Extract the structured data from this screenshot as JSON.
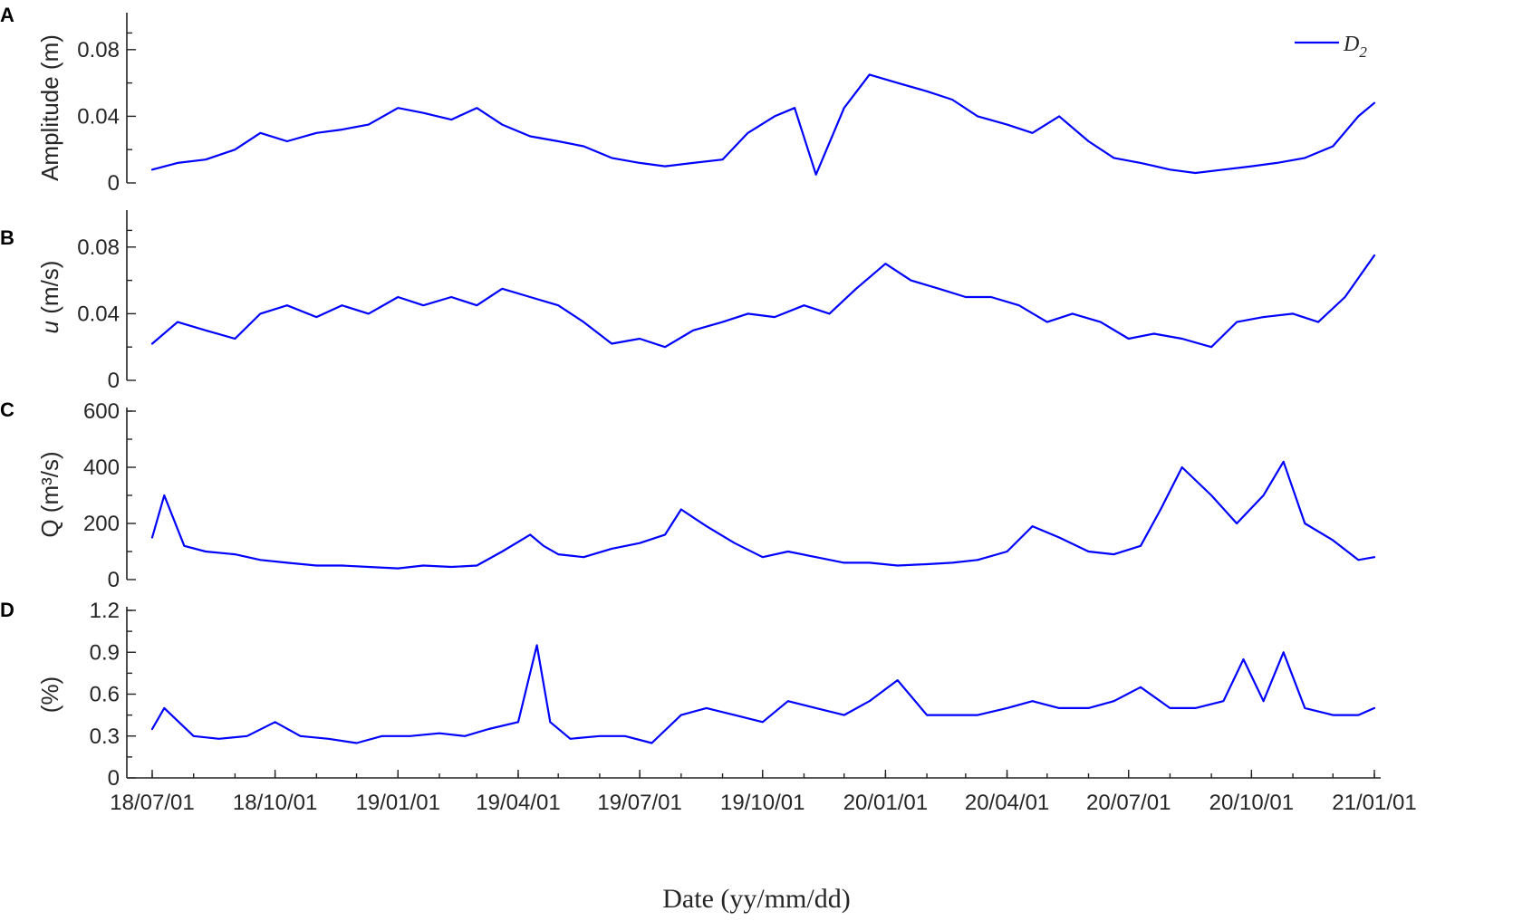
{
  "xlabel": "Date (yy/mm/dd)",
  "x_ticks": [
    "18/07/01",
    "18/10/01",
    "19/01/01",
    "19/04/01",
    "19/07/01",
    "19/10/01",
    "20/01/01",
    "20/04/01",
    "20/07/01",
    "20/10/01",
    "21/01/01"
  ],
  "series_color": "#0000ff",
  "chart_data": [
    {
      "panel": "A",
      "type": "line",
      "ylabel": "Amplitude (m)",
      "ylim": [
        0,
        0.1
      ],
      "yticks": [
        "0",
        "0.04",
        "0.08"
      ],
      "legend": {
        "label_main": "D",
        "label_sub": "2",
        "placement": "top-right"
      },
      "series": [
        {
          "name": "D2",
          "x": [
            "18/07/01",
            "18/07/20",
            "18/08/10",
            "18/09/01",
            "18/09/20",
            "18/10/10",
            "18/11/01",
            "18/11/20",
            "18/12/10",
            "19/01/01",
            "19/01/20",
            "19/02/10",
            "19/03/01",
            "19/03/20",
            "19/04/10",
            "19/05/01",
            "19/05/20",
            "19/06/10",
            "19/07/01",
            "19/07/20",
            "19/08/10",
            "19/09/01",
            "19/09/20",
            "19/10/10",
            "19/10/25",
            "19/11/10",
            "19/12/01",
            "19/12/20",
            "20/01/10",
            "20/02/01",
            "20/02/20",
            "20/03/10",
            "20/04/01",
            "20/04/20",
            "20/05/10",
            "20/06/01",
            "20/06/20",
            "20/07/10",
            "20/08/01",
            "20/08/20",
            "20/09/10",
            "20/10/01",
            "20/10/20",
            "20/11/10",
            "20/12/01",
            "20/12/20",
            "21/01/01"
          ],
          "values": [
            0.008,
            0.012,
            0.014,
            0.02,
            0.03,
            0.025,
            0.03,
            0.032,
            0.035,
            0.045,
            0.042,
            0.038,
            0.045,
            0.035,
            0.028,
            0.025,
            0.022,
            0.015,
            0.012,
            0.01,
            0.012,
            0.014,
            0.03,
            0.04,
            0.045,
            0.005,
            0.045,
            0.065,
            0.06,
            0.055,
            0.05,
            0.04,
            0.035,
            0.03,
            0.04,
            0.025,
            0.015,
            0.012,
            0.008,
            0.006,
            0.008,
            0.01,
            0.012,
            0.015,
            0.022,
            0.04,
            0.048
          ]
        }
      ]
    },
    {
      "panel": "B",
      "type": "line",
      "ylabel_italic": "u",
      "ylabel_rest": " (m/s)",
      "ylim": [
        0,
        0.1
      ],
      "yticks": [
        "0",
        "0.04",
        "0.08"
      ],
      "series": [
        {
          "name": "",
          "x": [
            "18/07/01",
            "18/07/20",
            "18/08/10",
            "18/09/01",
            "18/09/20",
            "18/10/10",
            "18/11/01",
            "18/11/20",
            "18/12/10",
            "19/01/01",
            "19/01/20",
            "19/02/10",
            "19/03/01",
            "19/03/20",
            "19/04/10",
            "19/05/01",
            "19/05/20",
            "19/06/10",
            "19/07/01",
            "19/07/20",
            "19/08/10",
            "19/09/01",
            "19/09/20",
            "19/10/10",
            "19/11/01",
            "19/11/20",
            "19/12/10",
            "20/01/01",
            "20/01/20",
            "20/02/10",
            "20/03/01",
            "20/03/20",
            "20/04/10",
            "20/05/01",
            "20/05/20",
            "20/06/10",
            "20/07/01",
            "20/07/20",
            "20/08/10",
            "20/09/01",
            "20/09/20",
            "20/10/10",
            "20/11/01",
            "20/11/20",
            "20/12/10",
            "21/01/01"
          ],
          "values": [
            0.022,
            0.035,
            0.03,
            0.025,
            0.04,
            0.045,
            0.038,
            0.045,
            0.04,
            0.05,
            0.045,
            0.05,
            0.045,
            0.055,
            0.05,
            0.045,
            0.035,
            0.022,
            0.025,
            0.02,
            0.03,
            0.035,
            0.04,
            0.038,
            0.045,
            0.04,
            0.055,
            0.07,
            0.06,
            0.055,
            0.05,
            0.05,
            0.045,
            0.035,
            0.04,
            0.035,
            0.025,
            0.028,
            0.025,
            0.02,
            0.035,
            0.038,
            0.04,
            0.035,
            0.05,
            0.075
          ]
        }
      ]
    },
    {
      "panel": "C",
      "type": "line",
      "ylabel": "Q (m³/s)",
      "ylim": [
        0,
        600
      ],
      "yticks": [
        "0",
        "200",
        "400",
        "600"
      ],
      "series": [
        {
          "name": "",
          "x": [
            "18/07/01",
            "18/07/10",
            "18/07/25",
            "18/08/10",
            "18/09/01",
            "18/09/20",
            "18/10/10",
            "18/11/01",
            "18/11/20",
            "18/12/10",
            "19/01/01",
            "19/01/20",
            "19/02/10",
            "19/03/01",
            "19/03/20",
            "19/04/10",
            "19/04/20",
            "19/05/01",
            "19/05/20",
            "19/06/10",
            "19/07/01",
            "19/07/20",
            "19/08/01",
            "19/08/20",
            "19/09/10",
            "19/10/01",
            "19/10/20",
            "19/11/10",
            "19/12/01",
            "19/12/20",
            "20/01/10",
            "20/02/01",
            "20/02/20",
            "20/03/10",
            "20/04/01",
            "20/04/20",
            "20/05/10",
            "20/06/01",
            "20/06/20",
            "20/07/10",
            "20/07/25",
            "20/08/10",
            "20/09/01",
            "20/09/20",
            "20/10/10",
            "20/10/25",
            "20/11/10",
            "20/12/01",
            "20/12/20",
            "21/01/01"
          ],
          "values": [
            150,
            300,
            120,
            100,
            90,
            70,
            60,
            50,
            50,
            45,
            40,
            50,
            45,
            50,
            100,
            160,
            120,
            90,
            80,
            110,
            130,
            160,
            250,
            190,
            130,
            80,
            100,
            80,
            60,
            60,
            50,
            55,
            60,
            70,
            100,
            190,
            150,
            100,
            90,
            120,
            250,
            400,
            300,
            200,
            300,
            420,
            200,
            140,
            70,
            80
          ]
        }
      ]
    },
    {
      "panel": "D",
      "type": "line",
      "ylabel": "(%)",
      "ylim": [
        0,
        1.2
      ],
      "yticks": [
        "0",
        "0.3",
        "0.6",
        "0.9",
        "1.2"
      ],
      "series": [
        {
          "name": "",
          "x": [
            "18/07/01",
            "18/07/10",
            "18/08/01",
            "18/08/20",
            "18/09/10",
            "18/10/01",
            "18/10/20",
            "18/11/10",
            "18/12/01",
            "18/12/20",
            "19/01/10",
            "19/02/01",
            "19/02/20",
            "19/03/10",
            "19/04/01",
            "19/04/15",
            "19/04/25",
            "19/05/10",
            "19/06/01",
            "19/06/20",
            "19/07/10",
            "19/08/01",
            "19/08/20",
            "19/09/10",
            "19/10/01",
            "19/10/20",
            "19/11/10",
            "19/12/01",
            "19/12/20",
            "20/01/10",
            "20/02/01",
            "20/02/20",
            "20/03/10",
            "20/04/01",
            "20/04/20",
            "20/05/10",
            "20/06/01",
            "20/06/20",
            "20/07/10",
            "20/08/01",
            "20/08/20",
            "20/09/10",
            "20/09/25",
            "20/10/10",
            "20/10/25",
            "20/11/10",
            "20/12/01",
            "20/12/20",
            "21/01/01"
          ],
          "values": [
            0.35,
            0.5,
            0.3,
            0.28,
            0.3,
            0.4,
            0.3,
            0.28,
            0.25,
            0.3,
            0.3,
            0.32,
            0.3,
            0.35,
            0.4,
            0.95,
            0.4,
            0.28,
            0.3,
            0.3,
            0.25,
            0.45,
            0.5,
            0.45,
            0.4,
            0.55,
            0.5,
            0.45,
            0.55,
            0.7,
            0.45,
            0.45,
            0.45,
            0.5,
            0.55,
            0.5,
            0.5,
            0.55,
            0.65,
            0.5,
            0.5,
            0.55,
            0.85,
            0.55,
            0.9,
            0.5,
            0.45,
            0.45,
            0.5
          ]
        }
      ]
    }
  ]
}
